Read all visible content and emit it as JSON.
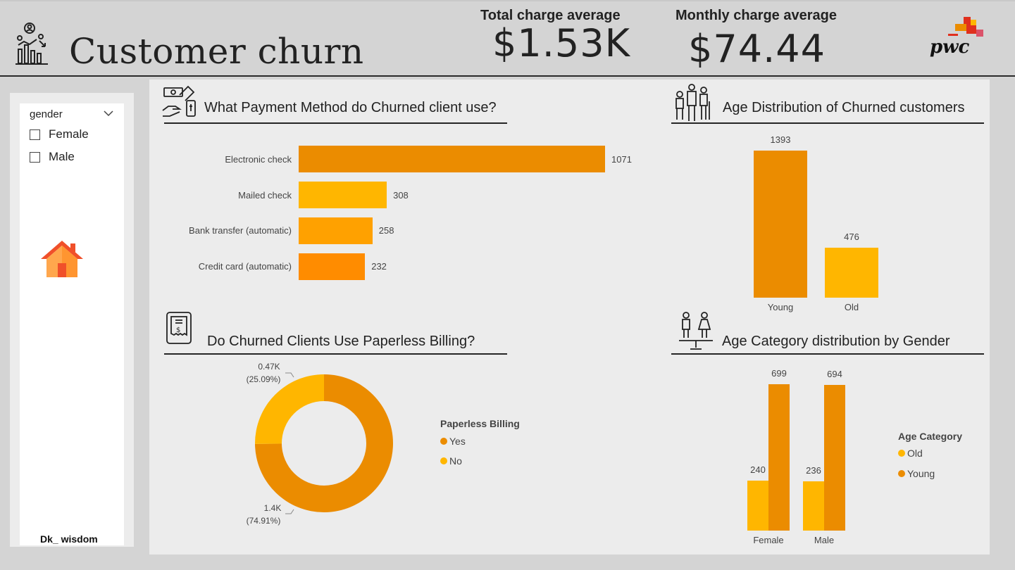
{
  "header": {
    "title": "Customer churn",
    "kpis": [
      {
        "label": "Total charge average",
        "value": "$1.53K"
      },
      {
        "label": "Monthly charge average",
        "value": "$74.44"
      }
    ],
    "logo_text": "pwc"
  },
  "filter": {
    "title": "gender",
    "options": [
      "Female",
      "Male"
    ],
    "footer": "Dk_ wisdom"
  },
  "colors": {
    "dark_orange": "#eb8c00",
    "light_orange": "#ffb600",
    "mid_orange": "#ffa100",
    "accent_orange": "#ff8c00"
  },
  "payment_chart": {
    "title": "What Payment Method do Churned client use?",
    "chart_data": {
      "type": "bar",
      "orientation": "horizontal",
      "categories": [
        "Electronic check",
        "Mailed check",
        "Bank transfer (automatic)",
        "Credit card (automatic)"
      ],
      "values": [
        1071,
        308,
        258,
        232
      ],
      "value_labels": [
        "1071",
        "308",
        "258",
        "232"
      ],
      "colors": [
        "#eb8c00",
        "#ffb600",
        "#ffa100",
        "#ff8c00"
      ]
    }
  },
  "age_chart": {
    "title": "Age Distribution of Churned customers",
    "chart_data": {
      "type": "bar",
      "categories": [
        "Young",
        "Old"
      ],
      "values": [
        1393,
        476
      ],
      "value_labels": [
        "1393",
        "476"
      ],
      "colors": [
        "#eb8c00",
        "#ffb600"
      ]
    }
  },
  "paperless_chart": {
    "title": "Do Churned Clients Use Paperless Billing?",
    "legend_title": "Paperless Billing",
    "chart_data": {
      "type": "pie",
      "style": "donut",
      "labels": [
        "Yes",
        "No"
      ],
      "values": [
        1400,
        470
      ],
      "percents": [
        74.91,
        25.09
      ],
      "value_labels": [
        "1.4K",
        "0.47K"
      ],
      "percent_labels": [
        "(74.91%)",
        "(25.09%)"
      ],
      "colors": [
        "#eb8c00",
        "#ffb600"
      ]
    }
  },
  "gender_chart": {
    "title": "Age Category distribution by Gender",
    "legend_title": "Age Category",
    "chart_data": {
      "type": "bar",
      "categories": [
        "Female",
        "Male"
      ],
      "series": [
        {
          "name": "Old",
          "values": [
            240,
            236
          ],
          "color": "#ffb600"
        },
        {
          "name": "Young",
          "values": [
            699,
            694
          ],
          "color": "#eb8c00"
        }
      ]
    }
  }
}
